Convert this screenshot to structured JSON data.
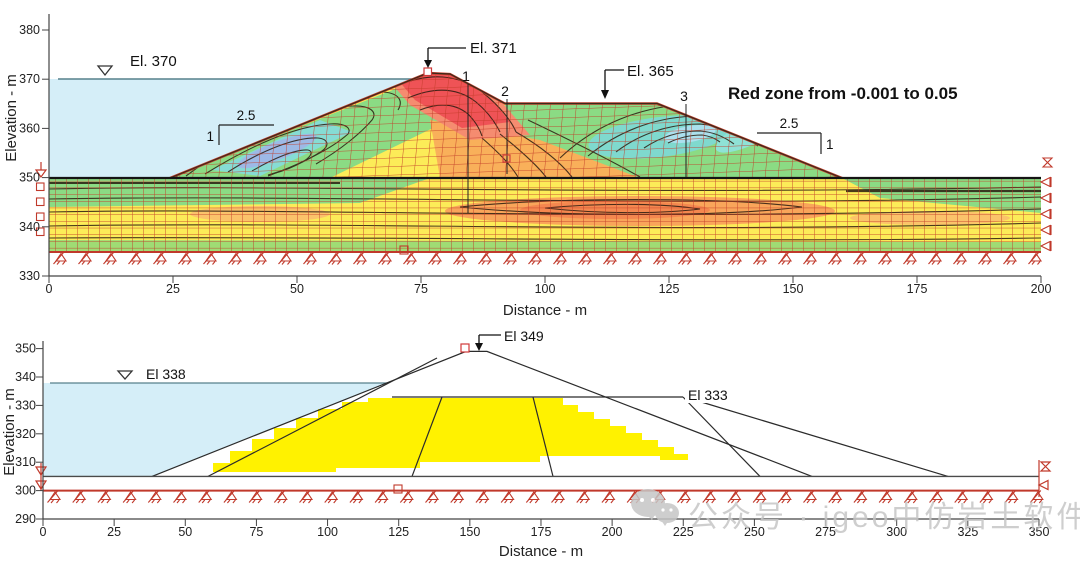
{
  "watermark": {
    "icon": "wechat-icon",
    "text": "公众号 · igeo中仿岩土软件"
  },
  "chart_data": [
    {
      "id": "upper-section",
      "type": "area",
      "description": "Embankment dam finite-element mesh with strain contour fills",
      "xlabel": "Distance - m",
      "ylabel": "Elevation - m",
      "xlim": [
        0,
        200
      ],
      "ylim": [
        330,
        380
      ],
      "xticks": [
        "0",
        "25",
        "50",
        "75",
        "100",
        "125",
        "150",
        "175",
        "200"
      ],
      "yticks": [
        "380",
        "370",
        "360",
        "350",
        "340",
        "330"
      ],
      "annotations": {
        "reservoir_level": "El. 370",
        "crest": "El. 371",
        "berm": "El. 365",
        "note": "Red zone from -0.001 to 0.05",
        "upstream_slope_run": "2.5",
        "upstream_slope_rise": "1",
        "downstream_slope_run": "2.5",
        "downstream_slope_rise": "1",
        "zone_1": "1",
        "zone_2": "2",
        "zone_3": "3"
      },
      "geometry": {
        "reservoir_level_m": 370,
        "crest_elevation_m": 371,
        "berm_elevation_m": 365,
        "ground_elevation_m": 350,
        "foundation_base_elevation_m": 335,
        "upstream_toe_x_m": 24.5,
        "crest_x_m": 77,
        "berm_start_x_m": 92,
        "berm_end_x_m": 123,
        "downstream_toe_x_m": 160,
        "upstream_slope": "2.5H:1V",
        "downstream_slope": "2.5H:1V"
      },
      "colors": {
        "water": "#d5eef8",
        "mesh": "#c23b28",
        "zone_red": "#ef5356",
        "zone_salmon": "#f58c70",
        "zone_orange": "#f9b05a",
        "zone_yellow": "#fcec58",
        "zone_green": "#8bdb84",
        "zone_cyan": "#7fd9ce",
        "zone_blue": "#9db9e6"
      }
    },
    {
      "id": "lower-section",
      "type": "area",
      "description": "Embankment dam cross-section with saturated (yellow) zone",
      "xlabel": "Distance - m",
      "ylabel": "Elevation - m",
      "xlim": [
        0,
        350
      ],
      "ylim": [
        290,
        350
      ],
      "xticks": [
        "0",
        "25",
        "50",
        "75",
        "100",
        "125",
        "150",
        "175",
        "200",
        "225",
        "250",
        "275",
        "300",
        "325",
        "350"
      ],
      "yticks": [
        "350",
        "340",
        "330",
        "320",
        "310",
        "300",
        "290"
      ],
      "annotations": {
        "reservoir_level": "El 338",
        "crest": "El 349",
        "filter_line": "El 333"
      },
      "geometry": {
        "reservoir_level_m": 338,
        "crest_elevation_m": 349,
        "filter_elevation_m": 333,
        "ground_elevation_m": 305,
        "base_elevation_m": 300,
        "upstream_toe_x_m": 38,
        "crest_x_m": 150,
        "downstream_toe_x_m": 270,
        "upstream_slope": "2.5H:1V"
      },
      "colors": {
        "water": "#d5eef8",
        "saturated_zone": "#fff200",
        "boundary_red": "#c0392b"
      }
    }
  ]
}
